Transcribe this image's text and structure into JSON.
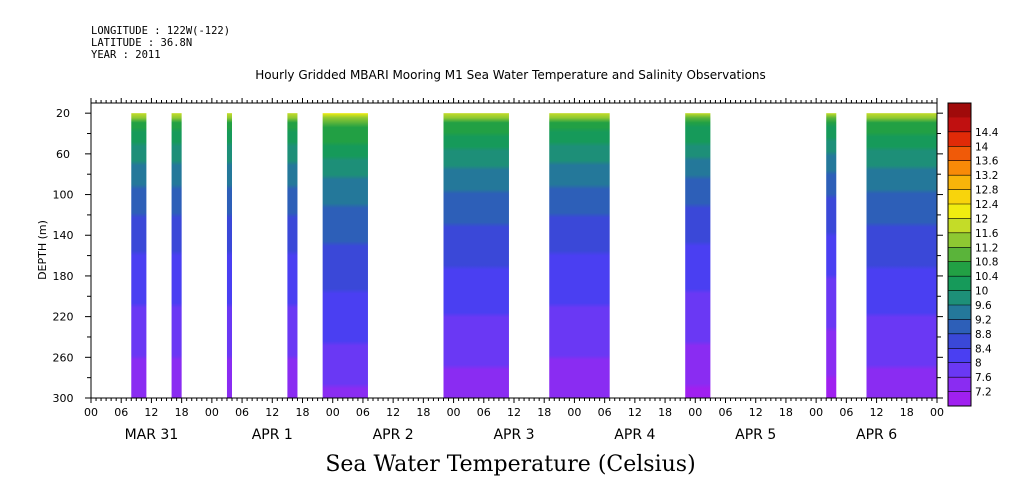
{
  "header": {
    "longitude": "LONGITUDE : 122W(-122)",
    "latitude": "LATITUDE : 36.8N",
    "year": "YEAR : 2011"
  },
  "chart_data": {
    "type": "heatmap",
    "title": "Hourly Gridded MBARI Mooring M1 Sea Water Temperature and Salinity Observations",
    "xlabel": "Sea Water Temperature (Celsius)",
    "ylabel": "DEPTH (m)",
    "ylim": [
      300,
      10
    ],
    "y_ticks": [
      20,
      60,
      100,
      140,
      180,
      220,
      260,
      300
    ],
    "x_range_hours": [
      0,
      168
    ],
    "x_tick_labels": [
      "00",
      "06",
      "12",
      "18",
      "00",
      "06",
      "12",
      "18",
      "00",
      "06",
      "12",
      "18",
      "00",
      "06",
      "12",
      "18",
      "00",
      "06",
      "12",
      "18",
      "00",
      "06",
      "12",
      "18",
      "00",
      "06",
      "12",
      "18",
      "00"
    ],
    "day_labels": [
      "MAR 31",
      "APR 1",
      "APR 2",
      "APR 3",
      "APR 4",
      "APR 5",
      "APR 6"
    ],
    "colorbar": {
      "levels": [
        "7.2",
        "7.6",
        "8",
        "8.4",
        "8.8",
        "9.2",
        "9.6",
        "10",
        "10.4",
        "10.8",
        "11.2",
        "11.6",
        "12",
        "12.4",
        "12.8",
        "13.2",
        "13.6",
        "14",
        "14.4"
      ],
      "colors": [
        "#a020f0",
        "#8a2cf2",
        "#6a38f4",
        "#4a3ff2",
        "#3a48d8",
        "#2d5fb8",
        "#24789a",
        "#1d8f78",
        "#169a5a",
        "#22a044",
        "#5ab43a",
        "#8ec832",
        "#c4dc28",
        "#f0ec10",
        "#f8d40c",
        "#f8b40a",
        "#f88a08",
        "#f05a08",
        "#e02a08",
        "#c01010",
        "#a00a0a"
      ]
    },
    "observation_blocks_hours": [
      [
        8,
        11
      ],
      [
        16,
        18
      ],
      [
        27,
        28
      ],
      [
        39,
        41
      ],
      [
        46,
        55
      ],
      [
        70,
        83
      ],
      [
        91,
        103
      ],
      [
        118,
        123
      ],
      [
        146,
        148
      ],
      [
        154,
        168
      ]
    ],
    "depth_profile": {
      "depth_m": [
        20,
        30,
        60,
        100,
        140,
        180,
        220,
        260,
        300
      ],
      "temp_c": [
        11.8,
        10.6,
        9.8,
        9.0,
        8.6,
        8.2,
        7.9,
        7.6,
        7.2
      ]
    },
    "block_offsets_c": [
      0.0,
      0.0,
      0.0,
      0.0,
      0.3,
      0.1,
      0.0,
      -0.1,
      -0.2,
      0.1
    ],
    "grid": false,
    "legend_position": "right"
  }
}
